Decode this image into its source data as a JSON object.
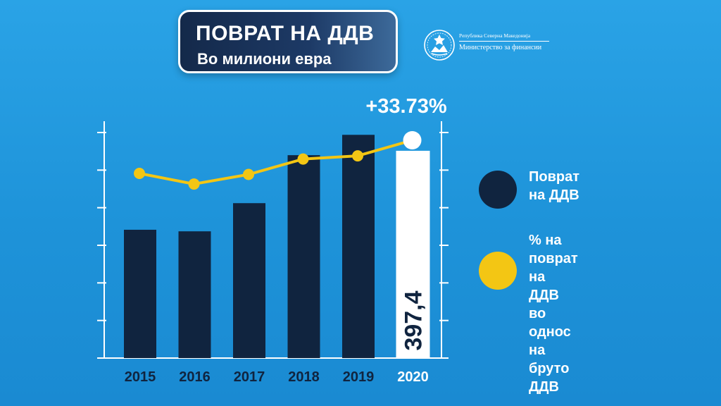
{
  "header": {
    "title": "ПОВРАТ НА ДДВ",
    "subtitle": "Во милиони евра"
  },
  "ministry": {
    "republic": "Република Северна Македонија",
    "ministry": "Министерство за финансии",
    "emblem_icon": "coat-of-arms-icon"
  },
  "colors": {
    "bar": "#10243f",
    "bar_highlight": "#ffffff",
    "line": "#f3c614",
    "axis": "#ffffff"
  },
  "legend": {
    "items": [
      {
        "label_lines": [
          "Поврат",
          "на ДДВ"
        ],
        "color": "#10243f"
      },
      {
        "label_lines": [
          "% на поврат",
          "на ДДВ во",
          "однос на",
          "бруто ДДВ"
        ],
        "color": "#f3c614"
      }
    ]
  },
  "chart_data": {
    "type": "bar",
    "categories": [
      "2015",
      "2016",
      "2017",
      "2018",
      "2019",
      "2020"
    ],
    "series": [
      {
        "name": "Поврат на ДДВ",
        "type": "bar",
        "values": [
          246,
          243,
          297,
          389,
          428,
          397.4
        ]
      },
      {
        "name": "% на поврат на ДДВ во однос на бруто ДДВ",
        "type": "line",
        "values": [
          27.5,
          25.5,
          27.3,
          30.2,
          30.8,
          33.73
        ]
      }
    ],
    "highlight": {
      "index": 5,
      "bar_label": "397,4",
      "line_label": "+33.73%"
    },
    "bar_ylim": [
      0,
      500
    ],
    "line_ylim": [
      0,
      50
    ],
    "legend_position": "right"
  }
}
